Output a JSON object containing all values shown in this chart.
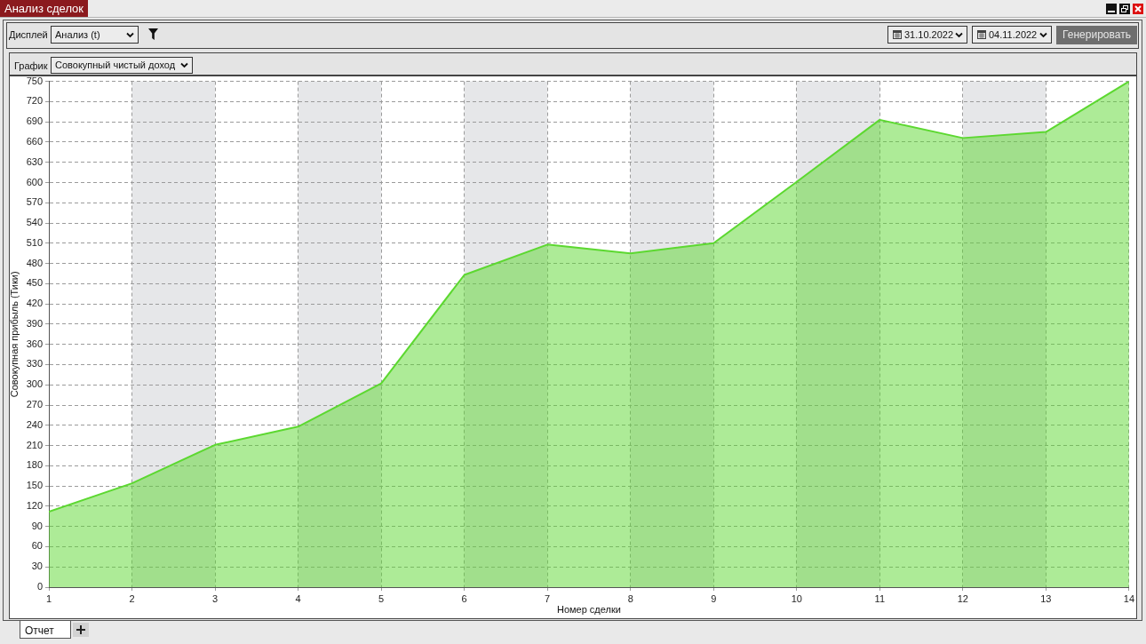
{
  "chart_data": {
    "type": "area",
    "title": "Анализ сделок",
    "xlabel": "Номер сделки",
    "ylabel": "Совокупная прибыль (Тики)",
    "x": [
      1,
      2,
      3,
      4,
      5,
      6,
      7,
      8,
      9,
      10,
      11,
      12,
      13,
      14
    ],
    "series": [
      {
        "color": "#5cd830",
        "values": [
          112,
          154,
          211,
          238,
          302,
          463,
          508,
          495,
          510,
          601,
          693,
          666,
          675,
          750
        ]
      }
    ],
    "xlim": [
      1,
      14
    ],
    "xticks": [
      1,
      2,
      3,
      4,
      5,
      6,
      7,
      8,
      9,
      10,
      11,
      12,
      13,
      14
    ],
    "ylim": [
      0,
      750
    ],
    "yticks": [
      0,
      30,
      60,
      90,
      120,
      150,
      180,
      210,
      240,
      270,
      300,
      330,
      360,
      390,
      420,
      450,
      480,
      510,
      540,
      570,
      600,
      630,
      660,
      690,
      720,
      750
    ],
    "grid": true,
    "bands": [
      {
        "axis": "x",
        "from": 2,
        "to": 3,
        "color": "#e6e7e9"
      },
      {
        "axis": "x",
        "from": 4,
        "to": 5,
        "color": "#e6e7e9"
      },
      {
        "axis": "x",
        "from": 6,
        "to": 7,
        "color": "#e6e7e9"
      },
      {
        "axis": "x",
        "from": 8,
        "to": 9,
        "color": "#e6e7e9"
      },
      {
        "axis": "x",
        "from": 10,
        "to": 11,
        "color": "#e6e7e9"
      },
      {
        "axis": "x",
        "from": 12,
        "to": 13,
        "color": "#e6e7e9"
      }
    ],
    "annotations": [
      "Дисплей",
      "Анализ (t)",
      "31.10.2022",
      "04.11.2022",
      "Генерировать",
      "График",
      "Совокупный чистый доход",
      "Отчет"
    ]
  }
}
